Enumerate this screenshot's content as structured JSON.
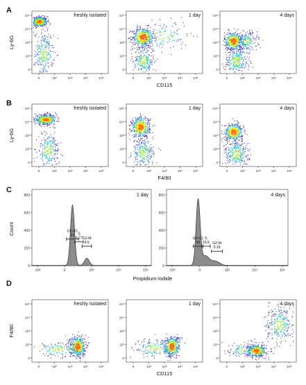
{
  "chart_data": {
    "type": "figure",
    "panels": {
      "A": {
        "letter": "A",
        "type": "scatter",
        "xlabel": "CD115",
        "ylabel": "Ly-6G",
        "subplots": [
          {
            "label": "freshly isolated",
            "ticks": {
              "x": [
                "0",
                "10²",
                "10³",
                "10⁴",
                "10⁵"
              ],
              "y": [
                "10⁵",
                "10⁴",
                "10³",
                "10²",
                "0"
              ]
            },
            "populations": [
              {
                "x": 0.1,
                "y": 0.83,
                "spread": [
                  0.05,
                  0.04
                ],
                "count": 500
              },
              {
                "x": 0.16,
                "y": 0.32,
                "spread": [
                  0.06,
                  0.18
                ],
                "count": 250
              }
            ]
          },
          {
            "label": "1 day",
            "ticks": {
              "x": [
                "0",
                "10²",
                "10³",
                "10⁴",
                "10⁵"
              ],
              "y": [
                "10⁵",
                "10⁴",
                "10³",
                "10²",
                "0"
              ]
            },
            "populations": [
              {
                "x": 0.22,
                "y": 0.58,
                "spread": [
                  0.07,
                  0.08
                ],
                "count": 500
              },
              {
                "x": 0.23,
                "y": 0.2,
                "spread": [
                  0.07,
                  0.12
                ],
                "count": 250
              },
              {
                "x": 0.5,
                "y": 0.6,
                "spread": [
                  0.15,
                  0.12
                ],
                "count": 150
              }
            ]
          },
          {
            "label": "4 days",
            "ticks": {
              "x": [
                "0",
                "10²",
                "10³",
                "10⁴",
                "10⁵"
              ],
              "y": [
                "10⁵",
                "10⁴",
                "10³",
                "10²",
                "0"
              ]
            },
            "populations": [
              {
                "x": 0.18,
                "y": 0.52,
                "spread": [
                  0.06,
                  0.07
                ],
                "count": 450
              },
              {
                "x": 0.22,
                "y": 0.2,
                "spread": [
                  0.08,
                  0.12
                ],
                "count": 300
              },
              {
                "x": 0.35,
                "y": 0.52,
                "spread": [
                  0.07,
                  0.08
                ],
                "count": 200
              }
            ]
          }
        ]
      },
      "B": {
        "letter": "B",
        "type": "scatter",
        "xlabel": "F4/80",
        "ylabel": "Ly-6G",
        "subplots": [
          {
            "label": "freshly isolated",
            "ticks": {
              "x": [
                "0",
                "10²",
                "10³",
                "10⁴",
                "10⁵"
              ],
              "y": [
                "10⁵",
                "10⁴",
                "10³",
                "10²",
                "0"
              ]
            },
            "populations": [
              {
                "x": 0.18,
                "y": 0.75,
                "spread": [
                  0.07,
                  0.04
                ],
                "count": 500
              },
              {
                "x": 0.22,
                "y": 0.25,
                "spread": [
                  0.07,
                  0.15
                ],
                "count": 250
              }
            ]
          },
          {
            "label": "1 day",
            "ticks": {
              "x": [
                "0",
                "10²",
                "10³",
                "10⁴",
                "10⁵"
              ],
              "y": [
                "10⁵",
                "10⁴",
                "10³",
                "10²",
                "0"
              ]
            },
            "populations": [
              {
                "x": 0.19,
                "y": 0.63,
                "spread": [
                  0.06,
                  0.08
                ],
                "count": 500
              },
              {
                "x": 0.22,
                "y": 0.22,
                "spread": [
                  0.07,
                  0.12
                ],
                "count": 250
              }
            ]
          },
          {
            "label": "4 days",
            "ticks": {
              "x": [
                "0",
                "10²",
                "10³",
                "10⁴",
                "10⁵"
              ],
              "y": [
                "10⁵",
                "10⁴",
                "10³",
                "10²",
                "0"
              ]
            },
            "populations": [
              {
                "x": 0.18,
                "y": 0.55,
                "spread": [
                  0.06,
                  0.07
                ],
                "count": 450
              },
              {
                "x": 0.22,
                "y": 0.2,
                "spread": [
                  0.08,
                  0.12
                ],
                "count": 300
              }
            ]
          }
        ]
      },
      "C": {
        "letter": "C",
        "type": "histogram",
        "xlabel": "Propidium-Iodide",
        "ylabel": "Count",
        "ylim": [
          0,
          800
        ],
        "yticks": [
          "800",
          "600",
          "400",
          "200",
          "0"
        ],
        "xticks": [
          "-10³",
          "0",
          "10³",
          "10⁴",
          "10⁵"
        ],
        "subplots": [
          {
            "label": "1 day",
            "peaks": [
              {
                "x": 0.34,
                "height": 0.84,
                "width": 0.017
              },
              {
                "x": 0.46,
                "height": 0.1,
                "width": 0.02
              }
            ],
            "gates": [
              {
                "name": "G0-G1",
                "value": "82",
                "x1": 0.29,
                "x2": 0.39,
                "y": 0.37
              },
              {
                "name": "S",
                "value": "8.77",
                "x1": 0.36,
                "x2": 0.43,
                "y": 0.33
              },
              {
                "name": "G2-M",
                "value": "4.5",
                "x1": 0.42,
                "x2": 0.5,
                "y": 0.27
              }
            ]
          },
          {
            "label": "4 days",
            "peaks": [
              {
                "x": 0.26,
                "height": 0.91,
                "width": 0.017
              },
              {
                "x": 0.32,
                "height": 0.13,
                "width": 0.03
              },
              {
                "x": 0.4,
                "height": 0.06,
                "width": 0.035
              }
            ],
            "gates": [
              {
                "name": "G0-G1",
                "value": "56",
                "x1": 0.22,
                "x2": 0.3,
                "y": 0.27
              },
              {
                "name": "S",
                "value": "33.6",
                "x1": 0.29,
                "x2": 0.36,
                "y": 0.27
              },
              {
                "name": "G2-M",
                "value": "5.16",
                "x1": 0.37,
                "x2": 0.46,
                "y": 0.2
              }
            ]
          }
        ]
      },
      "D": {
        "letter": "D",
        "type": "scatter",
        "xlabel": "CD115",
        "ylabel": "F4/80",
        "subplots": [
          {
            "label": "freshly isolated",
            "ticks": {
              "x": [
                "0",
                "10²",
                "10³",
                "10⁴",
                "10⁵"
              ],
              "y": [
                "10⁵",
                "10⁴",
                "10³",
                "10²",
                "0"
              ]
            },
            "populations": [
              {
                "x": 0.6,
                "y": 0.25,
                "spread": [
                  0.05,
                  0.08
                ],
                "count": 500
              },
              {
                "x": 0.35,
                "y": 0.2,
                "spread": [
                  0.15,
                  0.07
                ],
                "count": 150
              }
            ]
          },
          {
            "label": "1 day",
            "ticks": {
              "x": [
                "0",
                "10²",
                "10³",
                "10⁴",
                "10⁵"
              ],
              "y": [
                "10⁵",
                "10⁴",
                "10³",
                "10²",
                "0"
              ]
            },
            "populations": [
              {
                "x": 0.6,
                "y": 0.25,
                "spread": [
                  0.05,
                  0.08
                ],
                "count": 450
              },
              {
                "x": 0.38,
                "y": 0.22,
                "spread": [
                  0.15,
                  0.08
                ],
                "count": 180
              }
            ]
          },
          {
            "label": "4 days",
            "ticks": {
              "x": [
                "0",
                "10²",
                "10³",
                "10⁴",
                "10⁵"
              ],
              "y": [
                "10⁵",
                "10⁴",
                "10³",
                "10²",
                "0"
              ]
            },
            "populations": [
              {
                "x": 0.48,
                "y": 0.18,
                "spread": [
                  0.06,
                  0.05
                ],
                "count": 450
              },
              {
                "x": 0.78,
                "y": 0.6,
                "spread": [
                  0.09,
                  0.15
                ],
                "count": 300
              },
              {
                "x": 0.3,
                "y": 0.2,
                "spread": [
                  0.1,
                  0.06
                ],
                "count": 120
              }
            ]
          }
        ]
      }
    }
  }
}
